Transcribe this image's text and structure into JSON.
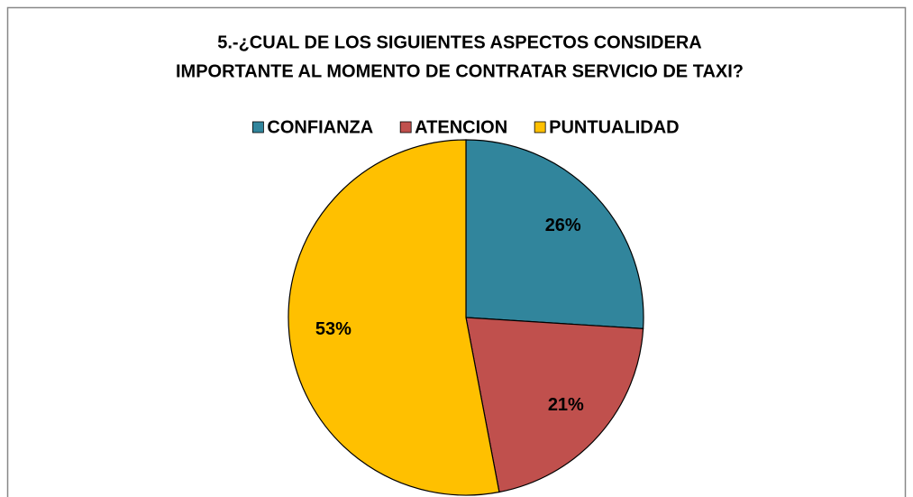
{
  "chart_data": {
    "type": "pie",
    "title": [
      "5.-¿CUAL DE LOS SIGUIENTES  ASPECTOS CONSIDERA",
      "IMPORTANTE AL MOMENTO DE CONTRATAR SERVICIO DE TAXI?"
    ],
    "categories": [
      "CONFIANZA",
      "ATENCION",
      "PUNTUALIDAD"
    ],
    "values": [
      26,
      21,
      53
    ],
    "value_labels": [
      "26%",
      "21%",
      "53%"
    ],
    "colors": [
      "#31859c",
      "#c0504d",
      "#ffc000"
    ],
    "legend": "top"
  }
}
